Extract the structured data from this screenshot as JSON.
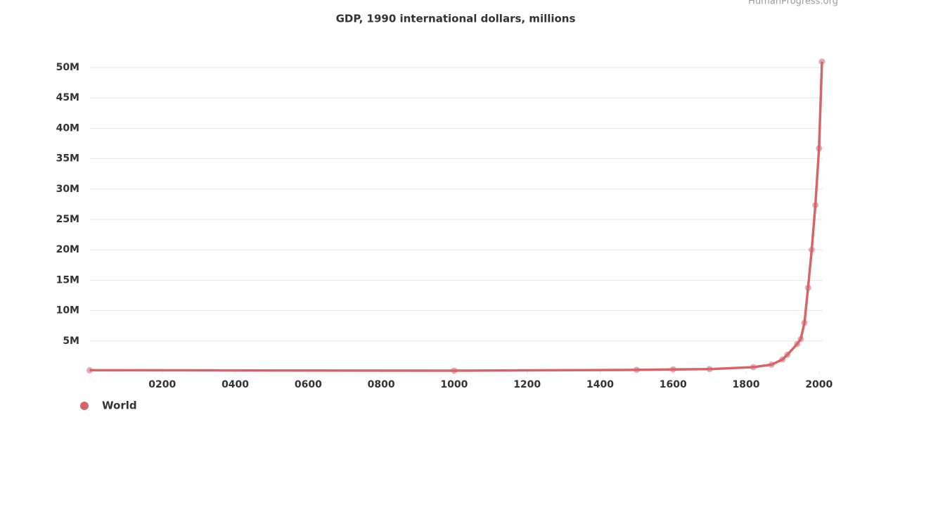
{
  "chart_data": {
    "type": "line",
    "source": "HumanProgress.org",
    "title": "GDP, 1990 international dollars, millions",
    "x": [
      1,
      1000,
      1500,
      1600,
      1700,
      1820,
      1870,
      1900,
      1913,
      1940,
      1950,
      1960,
      1970,
      1980,
      1990,
      2000,
      2008
    ],
    "series": [
      {
        "name": "World",
        "color": "#d4666b",
        "values": [
          182030,
          120379,
          247116,
          329417,
          371369,
          695346,
          1110951,
          1973000,
          2733365,
          4500000,
          5336101,
          8000000,
          13760000,
          20000000,
          27359000,
          36700000,
          50974000
        ]
      }
    ],
    "xlim": [
      0,
      2010
    ],
    "xticks": [
      {
        "value": 200,
        "label": "0200"
      },
      {
        "value": 400,
        "label": "0400"
      },
      {
        "value": 600,
        "label": "0600"
      },
      {
        "value": 800,
        "label": "0800"
      },
      1000,
      1200,
      1400,
      1600,
      1800,
      2000
    ],
    "ylim": [
      0,
      50000000
    ],
    "yticks": [
      {
        "value": 5000000,
        "label": "5M"
      },
      {
        "value": 10000000,
        "label": "10M"
      },
      {
        "value": 15000000,
        "label": "15M"
      },
      {
        "value": 20000000,
        "label": "20M"
      },
      {
        "value": 25000000,
        "label": "25M"
      },
      {
        "value": 30000000,
        "label": "30M"
      },
      {
        "value": 35000000,
        "label": "35M"
      },
      {
        "value": 40000000,
        "label": "40M"
      },
      {
        "value": 45000000,
        "label": "45M"
      },
      {
        "value": 50000000,
        "label": "50M"
      }
    ],
    "grid": true,
    "legend": "bottom-left"
  }
}
